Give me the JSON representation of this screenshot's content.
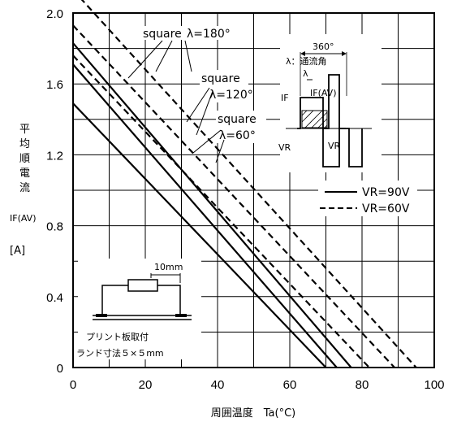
{
  "chart_data": {
    "type": "line",
    "xlabel": "周囲温度　Ta(°C)",
    "ylabel_lines": [
      "平",
      "均",
      "順",
      "電",
      "流"
    ],
    "ylabel_symbol": "IF(AV)",
    "ylabel_unit": "[A]",
    "xlim": [
      0,
      100
    ],
    "ylim": [
      0,
      2.0
    ],
    "xticks": [
      "0",
      "20",
      "40",
      "60",
      "80",
      "100"
    ],
    "yticks": [
      "0",
      "0.4",
      "0.8",
      "1.2",
      "1.6",
      "2.0"
    ],
    "grid": true,
    "series": [
      {
        "name": "VR=90V",
        "style": "solid",
        "lambda": "60°",
        "x": [
          0,
          70
        ],
        "y": [
          1.49,
          0.0
        ]
      },
      {
        "name": "VR=90V",
        "style": "solid",
        "lambda": "120°",
        "x": [
          0,
          73
        ],
        "y": [
          1.71,
          0.0
        ]
      },
      {
        "name": "VR=90V",
        "style": "solid",
        "lambda": "180°",
        "x": [
          0,
          77
        ],
        "y": [
          1.83,
          0.0
        ]
      },
      {
        "name": "VR=60V",
        "style": "dashed",
        "lambda": "60°",
        "x": [
          0,
          82
        ],
        "y": [
          1.76,
          0.0
        ]
      },
      {
        "name": "VR=60V",
        "style": "dashed",
        "lambda": "120°",
        "x": [
          0,
          89
        ],
        "y": [
          1.93,
          0.0
        ]
      },
      {
        "name": "VR=60V",
        "style": "dashed",
        "lambda": "180°",
        "x": [
          0,
          95
        ],
        "y": [
          2.13,
          0.0
        ]
      }
    ],
    "legend": [
      {
        "label": "VR=90V",
        "style": "solid"
      },
      {
        "label": "VR=60V",
        "style": "dashed"
      }
    ],
    "annotations": {
      "sq180_word": "square",
      "sq180_lambda": "λ=180°",
      "sq120_word": "square",
      "sq120_lambda": "λ=120°",
      "sq60_word": "square",
      "sq60_lambda": "λ=60°",
      "angle_label": "360°",
      "lambda_def": "λ：通流角",
      "lambda_sym": "λ",
      "if_label": "IF",
      "ifav_label": "IF(AV)",
      "vr_label": "VR",
      "vr_label2": "VR",
      "mount_dim": "10mm",
      "mount_text1": "プリント板取付",
      "mount_text2": "ランド寸法５×５mm"
    }
  }
}
